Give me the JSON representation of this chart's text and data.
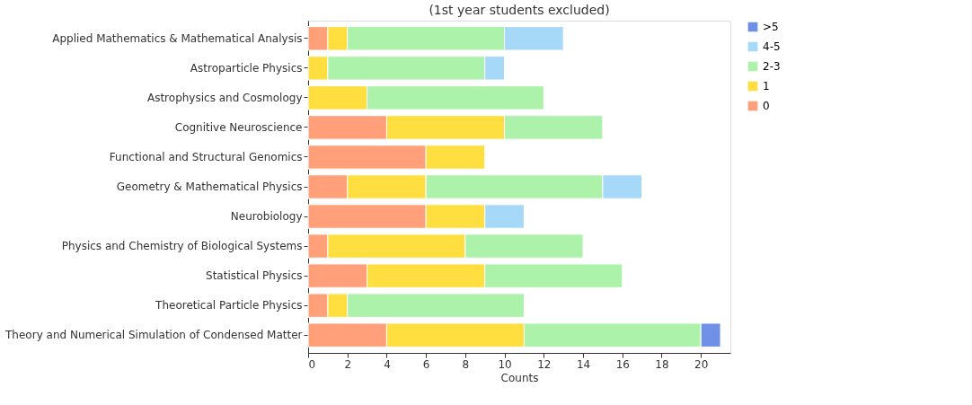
{
  "chart_data": {
    "type": "bar",
    "orientation": "horizontal",
    "stacked": true,
    "title": "(1st year students excluded)",
    "xlabel": "Counts",
    "categories": [
      "Applied Mathematics & Mathematical Analysis",
      "Astroparticle Physics",
      "Astrophysics and Cosmology",
      "Cognitive Neuroscience",
      "Functional and Structural Genomics",
      "Geometry & Mathematical Physics",
      "Neurobiology",
      "Physics and Chemistry of Biological Systems",
      "Statistical Physics",
      "Theoretical Particle Physics",
      "Theory and Numerical Simulation of Condensed Matter"
    ],
    "series": [
      {
        "name": "0",
        "color": "#ffa07a",
        "values": [
          1,
          0,
          0,
          4,
          6,
          2,
          6,
          1,
          3,
          1,
          4
        ]
      },
      {
        "name": "1",
        "color": "#ffdf3f",
        "values": [
          1,
          1,
          3,
          6,
          3,
          4,
          3,
          7,
          6,
          1,
          7
        ]
      },
      {
        "name": "2-3",
        "color": "#adf2ab",
        "values": [
          8,
          8,
          9,
          5,
          0,
          9,
          0,
          6,
          7,
          9,
          9
        ]
      },
      {
        "name": "4-5",
        "color": "#a6d8f8",
        "values": [
          3,
          1,
          0,
          0,
          0,
          2,
          2,
          0,
          0,
          0,
          0
        ]
      },
      {
        "name": ">5",
        "color": "#7090e8",
        "values": [
          0,
          0,
          0,
          0,
          0,
          0,
          0,
          0,
          0,
          0,
          1
        ]
      }
    ],
    "xlim": [
      0,
      21.5
    ],
    "xticks": [
      0,
      2,
      4,
      6,
      8,
      10,
      12,
      14,
      16,
      18,
      20
    ],
    "grid": false,
    "legend": "right"
  }
}
